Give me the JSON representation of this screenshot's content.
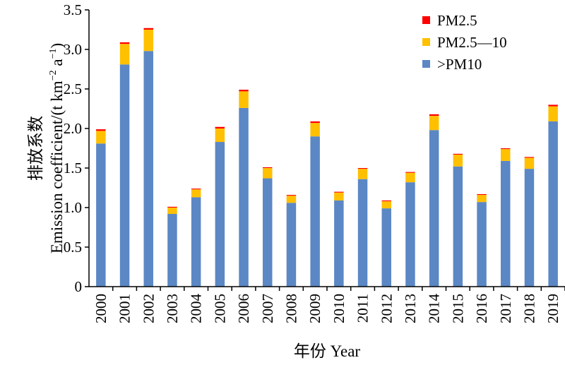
{
  "chart_data": {
    "type": "bar",
    "stacked": true,
    "categories": [
      "2000",
      "2001",
      "2002",
      "2003",
      "2004",
      "2005",
      "2006",
      "2007",
      "2008",
      "2009",
      "2010",
      "2011",
      "2012",
      "2013",
      "2014",
      "2015",
      "2016",
      "2017",
      "2018",
      "2019"
    ],
    "series": [
      {
        "name": ">PM10",
        "color": "#5b87c5",
        "values": [
          1.81,
          2.81,
          2.98,
          0.92,
          1.13,
          1.83,
          2.26,
          1.37,
          1.06,
          1.9,
          1.09,
          1.36,
          0.99,
          1.32,
          1.98,
          1.52,
          1.07,
          1.59,
          1.49,
          2.09
        ]
      },
      {
        "name": "PM2.5—10",
        "color": "#ffc000",
        "values": [
          0.16,
          0.26,
          0.27,
          0.08,
          0.1,
          0.17,
          0.21,
          0.13,
          0.09,
          0.17,
          0.1,
          0.13,
          0.09,
          0.12,
          0.18,
          0.15,
          0.09,
          0.15,
          0.14,
          0.19
        ]
      },
      {
        "name": "PM2.5",
        "color": "#ff0000",
        "values": [
          0.02,
          0.02,
          0.02,
          0.01,
          0.01,
          0.02,
          0.02,
          0.01,
          0.01,
          0.02,
          0.01,
          0.01,
          0.01,
          0.01,
          0.02,
          0.01,
          0.01,
          0.01,
          0.01,
          0.02
        ]
      }
    ],
    "legend_order": [
      "PM2.5",
      "PM2.5—10",
      ">PM10"
    ],
    "ylim": [
      0,
      3.5
    ],
    "yticks": [
      "0",
      "0.5",
      "1.0",
      "1.5",
      "2.0",
      "2.5",
      "3.0",
      "3.5"
    ],
    "ylabel_cn": "排放系数",
    "ylabel_en": "Emission coefficient/(t km",
    "ylabel_sup1": "−2",
    "ylabel_mid": " a",
    "ylabel_sup2": "−1",
    "ylabel_end": ")",
    "xlabel": "年份 Year",
    "legend_position": "top-right",
    "grid": false
  }
}
